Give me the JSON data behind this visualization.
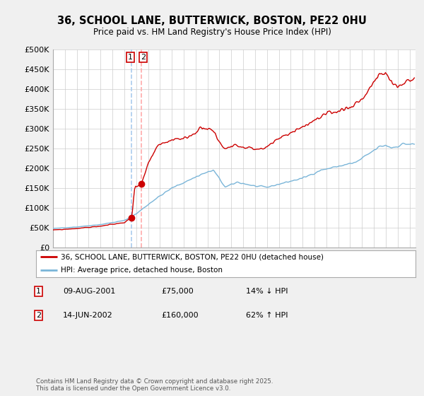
{
  "title_line1": "36, SCHOOL LANE, BUTTERWICK, BOSTON, PE22 0HU",
  "title_line2": "Price paid vs. HM Land Registry's House Price Index (HPI)",
  "ylim": [
    0,
    500000
  ],
  "yticks": [
    0,
    50000,
    100000,
    150000,
    200000,
    250000,
    300000,
    350000,
    400000,
    450000,
    500000
  ],
  "ytick_labels": [
    "£0",
    "£50K",
    "£100K",
    "£150K",
    "£200K",
    "£250K",
    "£300K",
    "£350K",
    "£400K",
    "£450K",
    "£500K"
  ],
  "xlim_start": 1995.0,
  "xlim_end": 2025.5,
  "hpi_color": "#7ab5d8",
  "price_color": "#cc0000",
  "background_color": "#f0f0f0",
  "plot_bg_color": "#ffffff",
  "grid_color": "#cccccc",
  "purchase1_year": 2001.608,
  "purchase1_price": 75000,
  "purchase2_year": 2002.455,
  "purchase2_price": 160000,
  "vline1_color": "#aaccee",
  "vline2_color": "#ffaaaa",
  "marker_size": 6,
  "legend_label_price": "36, SCHOOL LANE, BUTTERWICK, BOSTON, PE22 0HU (detached house)",
  "legend_label_hpi": "HPI: Average price, detached house, Boston",
  "annotation1_num": "1",
  "annotation1_date": "09-AUG-2001",
  "annotation1_price": "£75,000",
  "annotation1_hpi": "14% ↓ HPI",
  "annotation2_num": "2",
  "annotation2_date": "14-JUN-2002",
  "annotation2_price": "£160,000",
  "annotation2_hpi": "62% ↑ HPI",
  "footnote": "Contains HM Land Registry data © Crown copyright and database right 2025.\nThis data is licensed under the Open Government Licence v3.0."
}
